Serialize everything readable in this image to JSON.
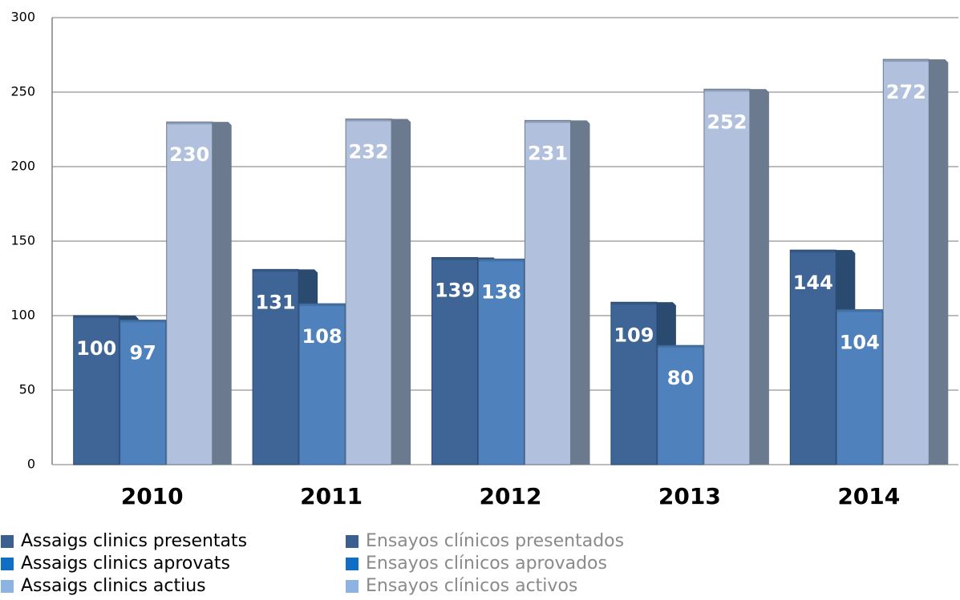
{
  "chart_data": {
    "type": "bar",
    "categories": [
      "2010",
      "2011",
      "2012",
      "2013",
      "2014"
    ],
    "series": [
      {
        "name": "Assaigs clinics presentats",
        "name_es": "Ensayos clínicos presentados",
        "color": "#3f6596",
        "side_color": "#2b4a70",
        "values": [
          100,
          131,
          139,
          109,
          144
        ]
      },
      {
        "name": "Assaigs clinics aprovats",
        "name_es": "Ensayos clínicos aprovados",
        "color": "#4f81bd",
        "side_color": "#3a6190",
        "values": [
          97,
          108,
          138,
          80,
          104
        ]
      },
      {
        "name": "Assaigs clinics actius",
        "name_es": "Ensayos clínicos activos",
        "color": "#b0c0dd",
        "side_color": "#6b7a8f",
        "values": [
          230,
          232,
          231,
          252,
          272
        ]
      }
    ],
    "legend_colors": [
      "#3b5f8f",
      "#0f6fc6",
      "#8db3e2"
    ],
    "ylim": [
      0,
      300
    ],
    "yticks": [
      0,
      50,
      100,
      150,
      200,
      250,
      300
    ],
    "grid": true
  }
}
